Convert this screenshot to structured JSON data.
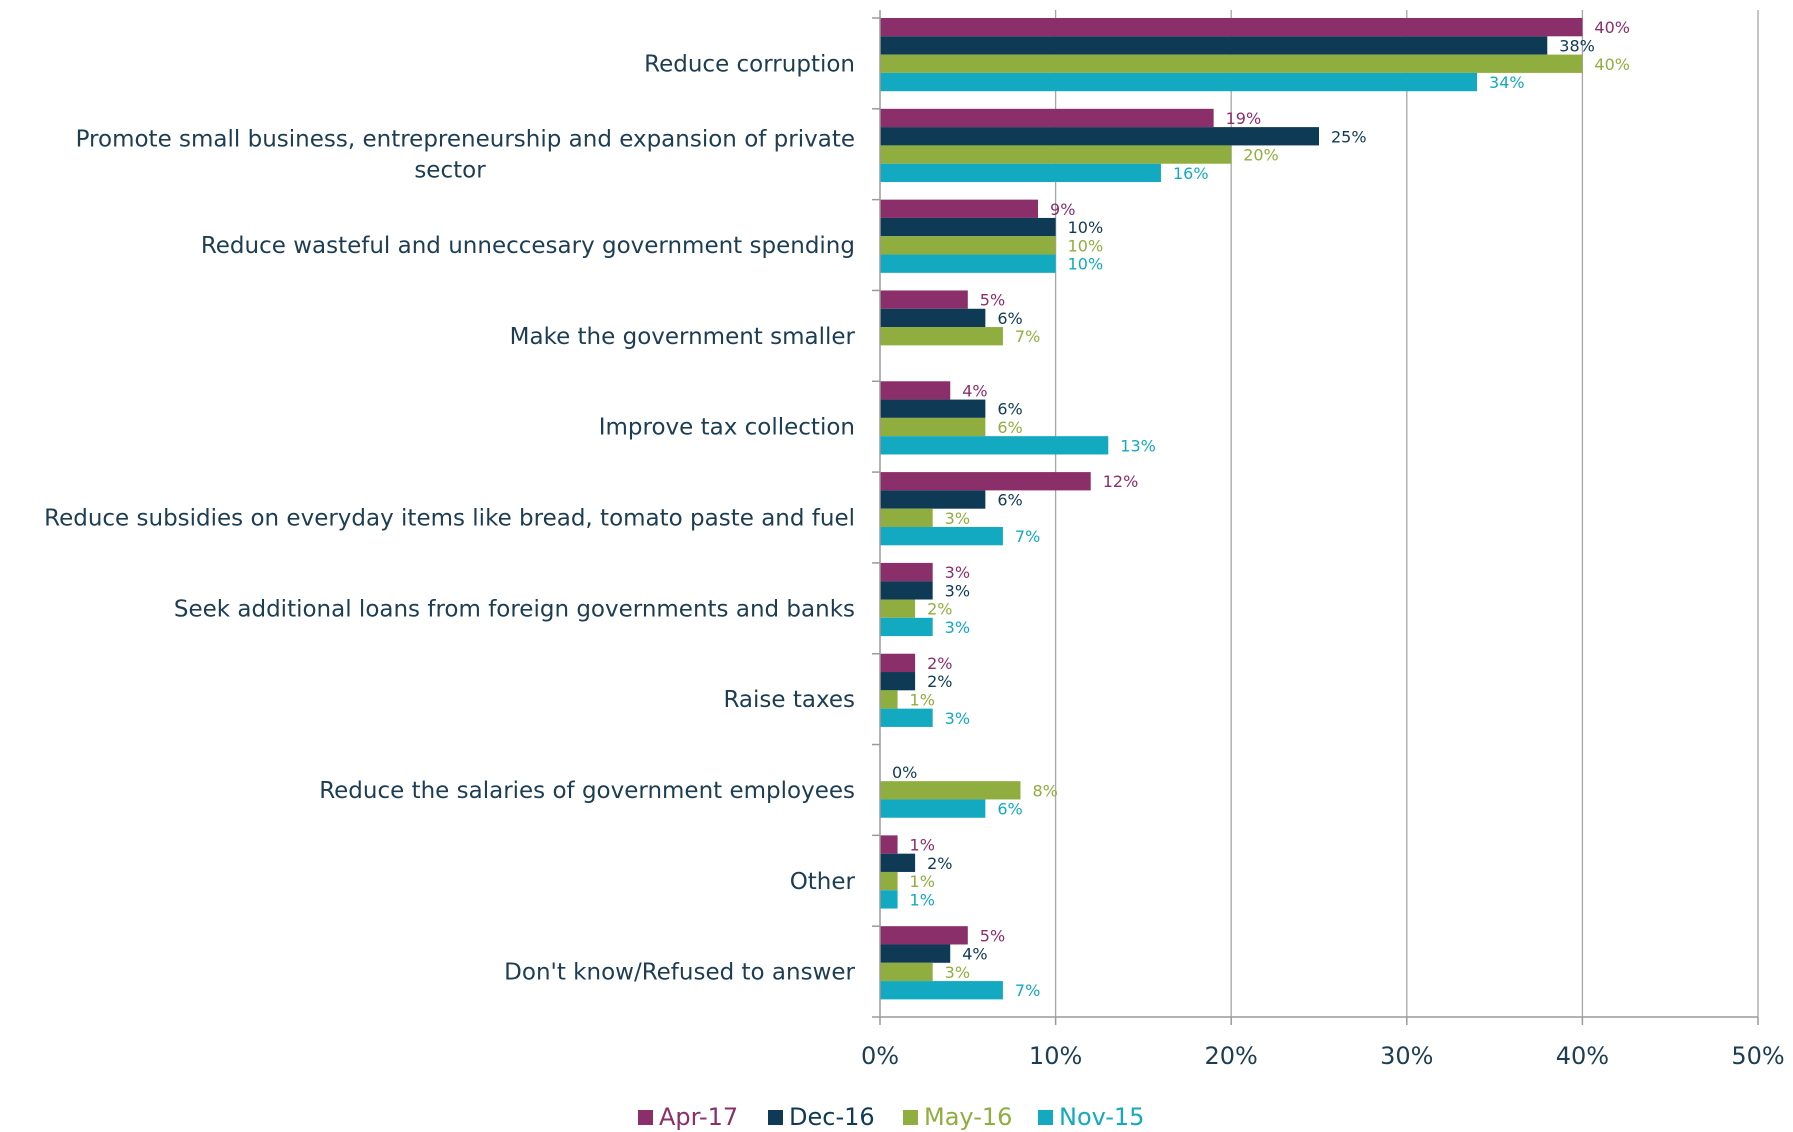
{
  "chart_data": {
    "type": "bar",
    "orientation": "horizontal",
    "title": "",
    "xlabel": "",
    "ylabel": "",
    "xlim": [
      0,
      50
    ],
    "xticks": [
      "0%",
      "10%",
      "20%",
      "30%",
      "40%",
      "50%"
    ],
    "grid": true,
    "legend_position": "bottom",
    "categories": [
      [
        "Reduce corruption"
      ],
      [
        "Promote small business, entrepreneurship and expansion of private",
        "sector"
      ],
      [
        "Reduce wasteful and unneccesary government spending"
      ],
      [
        "Make the government smaller"
      ],
      [
        "Improve tax collection"
      ],
      [
        "Reduce subsidies on everyday items like bread, tomato paste and fuel"
      ],
      [
        "Seek additional loans from foreign governments and banks"
      ],
      [
        "Raise taxes"
      ],
      [
        "Reduce the salaries of government employees"
      ],
      [
        "Other"
      ],
      [
        "Don't know/Refused to answer"
      ]
    ],
    "series": [
      {
        "name": "Apr-17",
        "color": "#8b2f6b",
        "values": [
          40,
          19,
          9,
          5,
          4,
          12,
          3,
          2,
          null,
          1,
          5
        ],
        "labels": [
          "40%",
          "19%",
          "9%",
          "5%",
          "4%",
          "12%",
          "3%",
          "2%",
          "",
          "1%",
          "5%"
        ]
      },
      {
        "name": "Dec-16",
        "color": "#0f3a55",
        "values": [
          38,
          25,
          10,
          6,
          6,
          6,
          3,
          2,
          0,
          2,
          4
        ],
        "labels": [
          "38%",
          "25%",
          "10%",
          "6%",
          "6%",
          "6%",
          "3%",
          "2%",
          "0%",
          "2%",
          "4%"
        ]
      },
      {
        "name": "May-16",
        "color": "#8fae3f",
        "values": [
          40,
          20,
          10,
          7,
          6,
          3,
          2,
          1,
          8,
          1,
          3
        ],
        "labels": [
          "40%",
          "20%",
          "10%",
          "7%",
          "6%",
          "3%",
          "2%",
          "1%",
          "8%",
          "1%",
          "3%"
        ]
      },
      {
        "name": "Nov-15",
        "color": "#13a9c0",
        "values": [
          34,
          16,
          10,
          null,
          13,
          7,
          3,
          3,
          6,
          1,
          7
        ],
        "labels": [
          "34%",
          "16%",
          "10%",
          "",
          "13%",
          "7%",
          "3%",
          "3%",
          "6%",
          "1%",
          "7%"
        ]
      }
    ]
  }
}
